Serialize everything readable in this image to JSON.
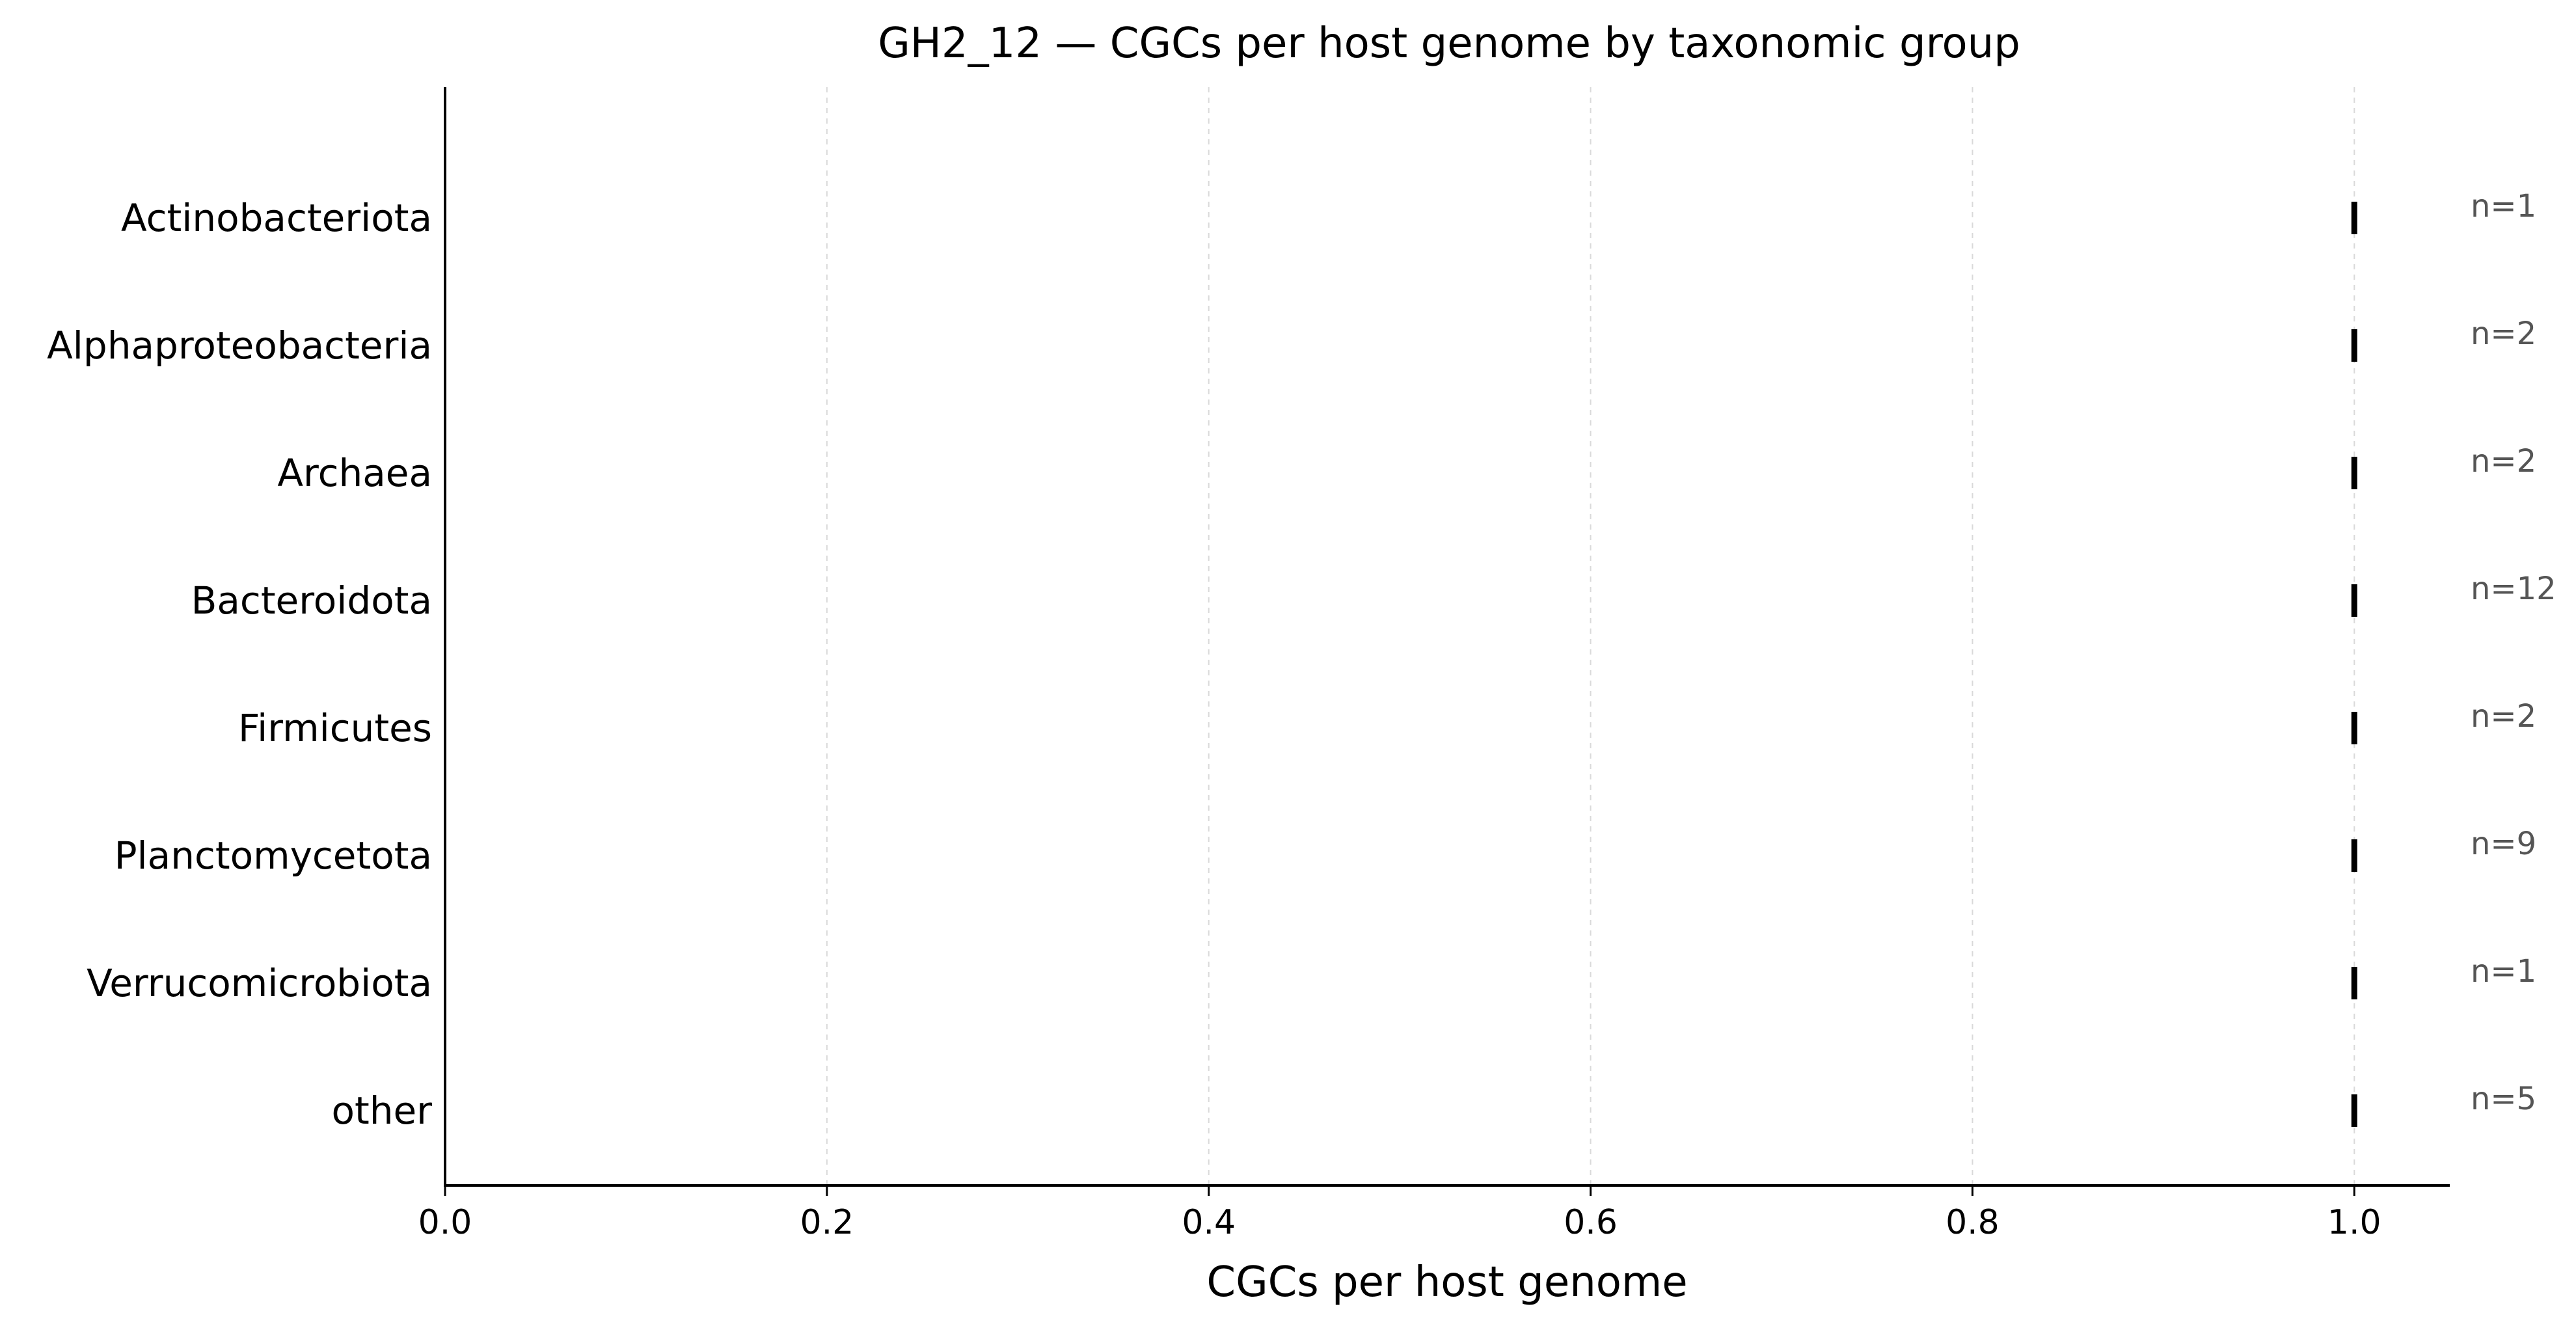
{
  "chart_data": {
    "type": "scatter",
    "title": "GH2_12 — CGCs per host genome by taxonomic group",
    "xlabel": "CGCs per host genome",
    "ylabel": "",
    "xlim": [
      0,
      1.05
    ],
    "x_ticks": [
      0.0,
      0.2,
      0.4,
      0.6,
      0.8,
      1.0
    ],
    "x_tick_labels": [
      "0.0",
      "0.2",
      "0.4",
      "0.6",
      "0.8",
      "1.0"
    ],
    "grid": "vertical dashed",
    "categories": [
      "Actinobacteriota",
      "Alphaproteobacteria",
      "Archaea",
      "Bacteroidota",
      "Firmicutes",
      "Planctomycetota",
      "Verrucomicrobiota",
      "other"
    ],
    "values": [
      1.0,
      1.0,
      1.0,
      1.0,
      1.0,
      1.0,
      1.0,
      1.0
    ],
    "counts": [
      "n=1",
      "n=2",
      "n=2",
      "n=12",
      "n=2",
      "n=9",
      "n=1",
      "n=5"
    ],
    "marker_color": "#000000",
    "count_color": "#555555"
  }
}
